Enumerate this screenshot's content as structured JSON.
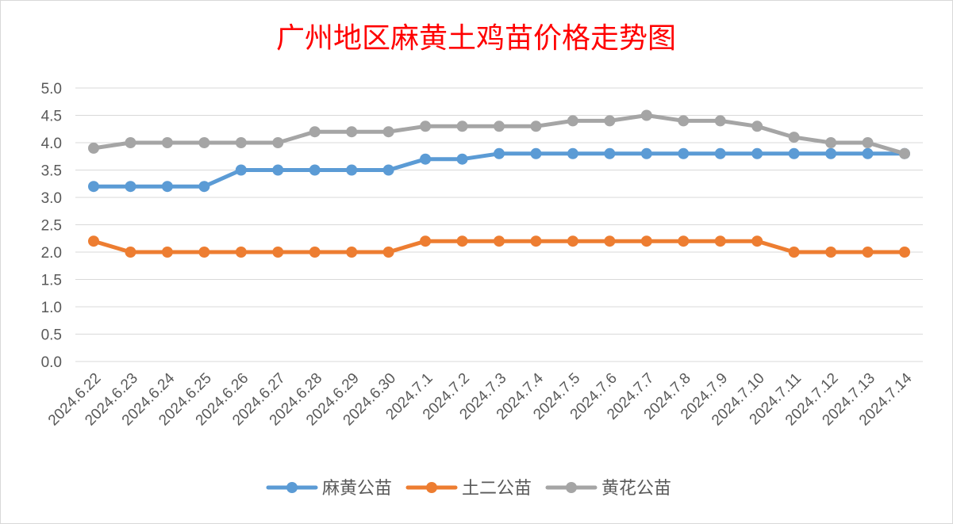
{
  "chart_data": {
    "type": "line",
    "title": "广州地区麻黄土鸡苗价格走势图",
    "title_color": "#ff0000",
    "xlabel": "",
    "ylabel": "",
    "ylim": [
      0,
      5.0
    ],
    "y_ticks": [
      "0.0",
      "0.5",
      "1.0",
      "1.5",
      "2.0",
      "2.5",
      "3.0",
      "3.5",
      "4.0",
      "4.5",
      "5.0"
    ],
    "grid": true,
    "legend_position": "bottom",
    "categories": [
      "2024.6.22",
      "2024.6.23",
      "2024.6.24",
      "2024.6.25",
      "2024.6.26",
      "2024.6.27",
      "2024.6.28",
      "2024.6.29",
      "2024.6.30",
      "2024.7.1",
      "2024.7.2",
      "2024.7.3",
      "2024.7.4",
      "2024.7.5",
      "2024.7.6",
      "2024.7.7",
      "2024.7.8",
      "2024.7.9",
      "2024.7.10",
      "2024.7.11",
      "2024.7.12",
      "2024.7.13",
      "2024.7.14"
    ],
    "series": [
      {
        "name": "麻黄公苗",
        "color": "#5b9bd5",
        "values": [
          3.2,
          3.2,
          3.2,
          3.2,
          3.5,
          3.5,
          3.5,
          3.5,
          3.5,
          3.7,
          3.7,
          3.8,
          3.8,
          3.8,
          3.8,
          3.8,
          3.8,
          3.8,
          3.8,
          3.8,
          3.8,
          3.8,
          3.8
        ]
      },
      {
        "name": "土二公苗",
        "color": "#ed7d31",
        "values": [
          2.2,
          2.0,
          2.0,
          2.0,
          2.0,
          2.0,
          2.0,
          2.0,
          2.0,
          2.2,
          2.2,
          2.2,
          2.2,
          2.2,
          2.2,
          2.2,
          2.2,
          2.2,
          2.2,
          2.0,
          2.0,
          2.0,
          2.0
        ]
      },
      {
        "name": "黄花公苗",
        "color": "#a5a5a5",
        "values": [
          3.9,
          4.0,
          4.0,
          4.0,
          4.0,
          4.0,
          4.2,
          4.2,
          4.2,
          4.3,
          4.3,
          4.3,
          4.3,
          4.4,
          4.4,
          4.5,
          4.4,
          4.4,
          4.3,
          4.1,
          4.0,
          4.0,
          3.8
        ]
      }
    ]
  }
}
